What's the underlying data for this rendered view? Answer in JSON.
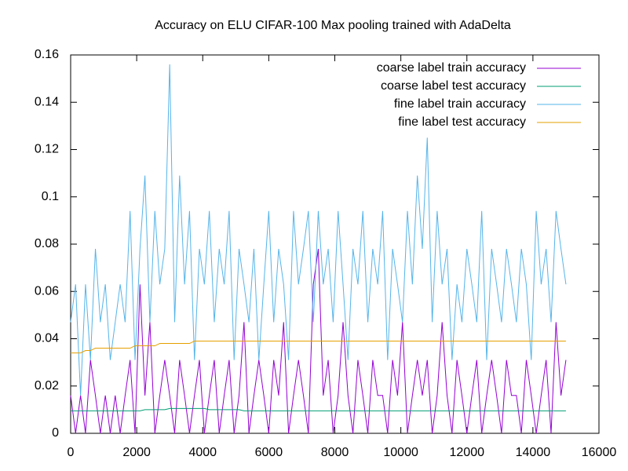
{
  "chart_data": {
    "type": "line",
    "title": "Accuracy on ELU CIFAR-100 Max pooling trained with AdaDelta",
    "x": [
      0,
      150,
      300,
      450,
      600,
      750,
      900,
      1050,
      1200,
      1350,
      1500,
      1650,
      1800,
      1950,
      2100,
      2250,
      2400,
      2550,
      2700,
      2850,
      3000,
      3150,
      3300,
      3450,
      3600,
      3750,
      3900,
      4050,
      4200,
      4350,
      4500,
      4650,
      4800,
      4950,
      5100,
      5250,
      5400,
      5550,
      5700,
      5850,
      6000,
      6150,
      6300,
      6450,
      6600,
      6750,
      6900,
      7050,
      7200,
      7350,
      7500,
      7650,
      7800,
      7950,
      8100,
      8250,
      8400,
      8550,
      8700,
      8850,
      9000,
      9150,
      9300,
      9450,
      9600,
      9750,
      9900,
      10050,
      10200,
      10350,
      10500,
      10650,
      10800,
      10950,
      11100,
      11250,
      11400,
      11550,
      11700,
      11850,
      12000,
      12150,
      12300,
      12450,
      12600,
      12750,
      12900,
      13050,
      13200,
      13350,
      13500,
      13650,
      13800,
      13950,
      14100,
      14250,
      14400,
      14550,
      14700,
      14850,
      15000
    ],
    "series": [
      {
        "name": "coarse label train accuracy",
        "color": "#9400d3",
        "values": [
          0.016,
          0,
          0.016,
          0,
          0.031,
          0.016,
          0,
          0.016,
          0,
          0.016,
          0,
          0.016,
          0.031,
          0,
          0.063,
          0.016,
          0.047,
          0,
          0.016,
          0.031,
          0.016,
          0,
          0.031,
          0.016,
          0,
          0.016,
          0.031,
          0,
          0.016,
          0.031,
          0,
          0.016,
          0.031,
          0,
          0.016,
          0.047,
          0,
          0.016,
          0.031,
          0.016,
          0,
          0.031,
          0.016,
          0.047,
          0,
          0.016,
          0.031,
          0.016,
          0,
          0.063,
          0.078,
          0.016,
          0.031,
          0,
          0.016,
          0.047,
          0.016,
          0,
          0.031,
          0.016,
          0,
          0.031,
          0.016,
          0.016,
          0,
          0.031,
          0.016,
          0.047,
          0,
          0.016,
          0.031,
          0.016,
          0.031,
          0,
          0.016,
          0.047,
          0.016,
          0,
          0.031,
          0.016,
          0,
          0.016,
          0.031,
          0,
          0.016,
          0.031,
          0.016,
          0,
          0.031,
          0.016,
          0.016,
          0,
          0.031,
          0.016,
          0,
          0.016,
          0.031,
          0,
          0.047,
          0.016,
          0.031
        ]
      },
      {
        "name": "coarse label test accuracy",
        "color": "#009e73",
        "values": [
          0.0095,
          0.0095,
          0.0095,
          0.0095,
          0.0095,
          0.0095,
          0.0095,
          0.0095,
          0.0095,
          0.0095,
          0.0095,
          0.0095,
          0.0095,
          0.0095,
          0.0095,
          0.01,
          0.01,
          0.01,
          0.01,
          0.01,
          0.0105,
          0.0105,
          0.0105,
          0.0105,
          0.0105,
          0.0105,
          0.0105,
          0.0105,
          0.01,
          0.01,
          0.01,
          0.01,
          0.01,
          0.01,
          0.01,
          0.0095,
          0.0095,
          0.0095,
          0.0095,
          0.0095,
          0.0095,
          0.0095,
          0.0095,
          0.0095,
          0.0095,
          0.0095,
          0.0095,
          0.0095,
          0.0095,
          0.0095,
          0.0095,
          0.0095,
          0.0095,
          0.0095,
          0.0095,
          0.0095,
          0.0095,
          0.0095,
          0.0095,
          0.0095,
          0.0095,
          0.0095,
          0.0095,
          0.0095,
          0.0095,
          0.0095,
          0.0095,
          0.0095,
          0.0095,
          0.0095,
          0.0095,
          0.0095,
          0.0095,
          0.0095,
          0.0095,
          0.0095,
          0.0095,
          0.0095,
          0.0095,
          0.0095,
          0.0095,
          0.0095,
          0.0095,
          0.0095,
          0.0095,
          0.0095,
          0.0095,
          0.0095,
          0.0095,
          0.0095,
          0.0095,
          0.0095,
          0.0095,
          0.0095,
          0.0095,
          0.0095,
          0.0095,
          0.0095,
          0.0095,
          0.0095,
          0.0095
        ]
      },
      {
        "name": "fine label train accuracy",
        "color": "#56b4e9",
        "values": [
          0.047,
          0.063,
          0.016,
          0.063,
          0.031,
          0.078,
          0.047,
          0.063,
          0.031,
          0.047,
          0.063,
          0.047,
          0.094,
          0.031,
          0.078,
          0.109,
          0.047,
          0.094,
          0.063,
          0.078,
          0.156,
          0.047,
          0.109,
          0.063,
          0.094,
          0.031,
          0.078,
          0.063,
          0.094,
          0.047,
          0.078,
          0.063,
          0.094,
          0.031,
          0.078,
          0.063,
          0.047,
          0.078,
          0.031,
          0.063,
          0.094,
          0.047,
          0.078,
          0.063,
          0.031,
          0.094,
          0.063,
          0.078,
          0.094,
          0.047,
          0.094,
          0.063,
          0.078,
          0.047,
          0.094,
          0.063,
          0.031,
          0.078,
          0.063,
          0.094,
          0.047,
          0.078,
          0.063,
          0.094,
          0.031,
          0.078,
          0.063,
          0.047,
          0.094,
          0.063,
          0.109,
          0.078,
          0.125,
          0.047,
          0.094,
          0.063,
          0.078,
          0.031,
          0.063,
          0.047,
          0.078,
          0.063,
          0.047,
          0.094,
          0.031,
          0.078,
          0.063,
          0.047,
          0.078,
          0.063,
          0.047,
          0.078,
          0.063,
          0.031,
          0.094,
          0.063,
          0.078,
          0.047,
          0.094,
          0.078,
          0.063
        ]
      },
      {
        "name": "fine label test accuracy",
        "color": "#e69f00",
        "values": [
          0.034,
          0.034,
          0.034,
          0.035,
          0.035,
          0.036,
          0.036,
          0.036,
          0.036,
          0.036,
          0.036,
          0.036,
          0.036,
          0.037,
          0.037,
          0.037,
          0.037,
          0.037,
          0.038,
          0.038,
          0.038,
          0.038,
          0.038,
          0.038,
          0.038,
          0.039,
          0.039,
          0.039,
          0.039,
          0.039,
          0.039,
          0.039,
          0.039,
          0.039,
          0.039,
          0.039,
          0.039,
          0.039,
          0.039,
          0.039,
          0.039,
          0.039,
          0.039,
          0.039,
          0.039,
          0.039,
          0.039,
          0.039,
          0.039,
          0.039,
          0.039,
          0.039,
          0.039,
          0.039,
          0.039,
          0.039,
          0.039,
          0.039,
          0.039,
          0.039,
          0.039,
          0.039,
          0.039,
          0.039,
          0.039,
          0.039,
          0.039,
          0.039,
          0.039,
          0.039,
          0.039,
          0.039,
          0.039,
          0.039,
          0.039,
          0.039,
          0.039,
          0.039,
          0.039,
          0.039,
          0.039,
          0.039,
          0.039,
          0.039,
          0.039,
          0.039,
          0.039,
          0.039,
          0.039,
          0.039,
          0.039,
          0.039,
          0.039,
          0.039,
          0.039,
          0.039,
          0.039,
          0.039,
          0.039,
          0.039,
          0.039
        ]
      }
    ],
    "xlim": [
      0,
      16000
    ],
    "xticks": [
      0,
      2000,
      4000,
      6000,
      8000,
      10000,
      12000,
      14000,
      16000
    ],
    "ylim": [
      0,
      0.16
    ],
    "yticks": [
      0,
      0.02,
      0.04,
      0.06,
      0.08,
      0.1,
      0.12,
      0.14,
      0.16
    ],
    "legend": "top-right"
  }
}
